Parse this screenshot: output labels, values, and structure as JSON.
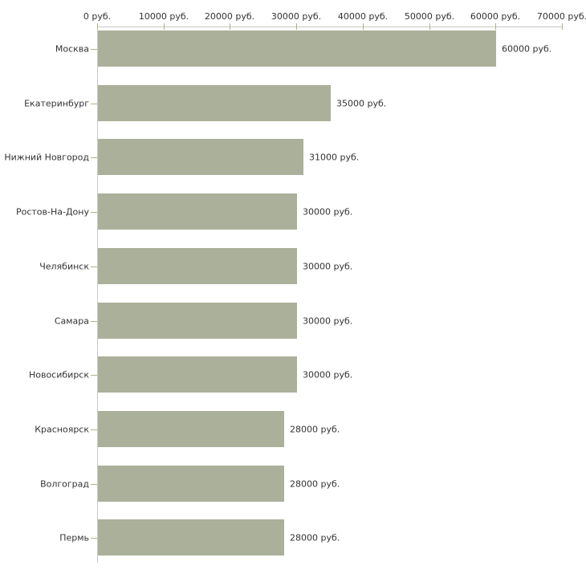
{
  "chart_data": {
    "type": "bar",
    "orientation": "horizontal",
    "title": "",
    "xlabel": "",
    "ylabel": "",
    "xlim": [
      0,
      70000
    ],
    "grid": false,
    "legend": false,
    "x_tick_labels": [
      "0 руб.",
      "10000 руб.",
      "20000 руб.",
      "30000 руб.",
      "40000 руб.",
      "50000 руб.",
      "60000 руб.",
      "70000 руб."
    ],
    "x_tick_values": [
      0,
      10000,
      20000,
      30000,
      40000,
      50000,
      60000,
      70000
    ],
    "categories": [
      "Москва",
      "Екатеринбург",
      "Нижний Новгород",
      "Ростов-На-Дону",
      "Челябинск",
      "Самара",
      "Новосибирск",
      "Красноярск",
      "Волгоград",
      "Пермь"
    ],
    "values": [
      60000,
      35000,
      31000,
      30000,
      30000,
      30000,
      30000,
      28000,
      28000,
      28000
    ],
    "value_labels": [
      "60000 руб.",
      "35000 руб.",
      "31000 руб.",
      "30000 руб.",
      "30000 руб.",
      "30000 руб.",
      "30000 руб.",
      "28000 руб.",
      "28000 руб.",
      "28000 руб."
    ],
    "colors": {
      "bar": "#abb09a",
      "axis_line": "#c8c8c8",
      "tick": "#b3b284",
      "text": "#333333",
      "background": "#ffffff"
    }
  }
}
